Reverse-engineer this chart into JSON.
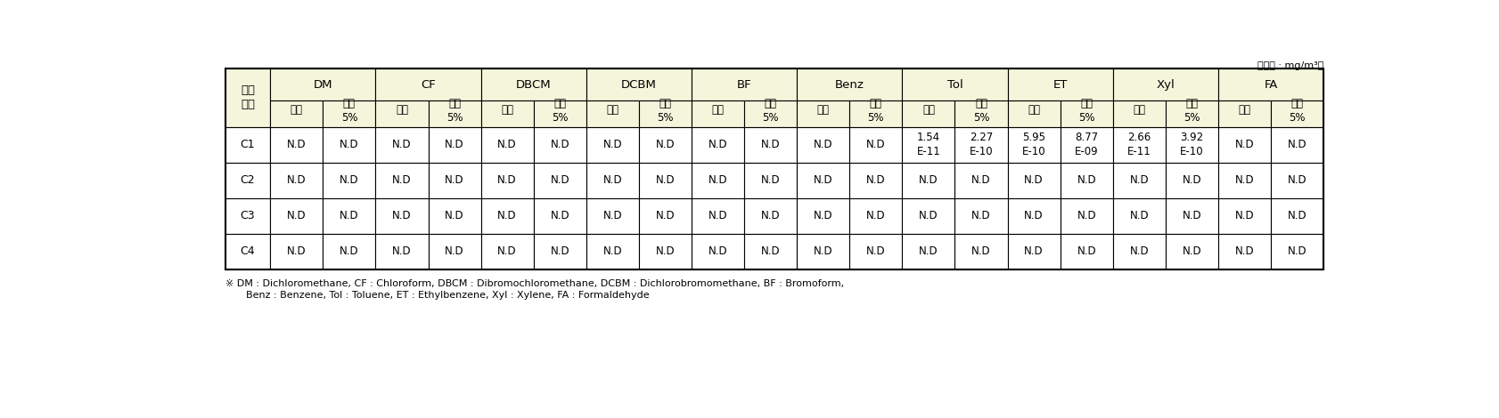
{
  "unit_text": "（단위 : mg/m³）",
  "col_groups": [
    "DM",
    "CF",
    "DBCM",
    "DCBM",
    "BF",
    "Benz",
    "Tol",
    "ET",
    "Xyl",
    "FA"
  ],
  "rows": [
    {
      "label": "C1",
      "values": [
        "N.D",
        "N.D",
        "N.D",
        "N.D",
        "N.D",
        "N.D",
        "N.D",
        "N.D",
        "N.D",
        "N.D",
        "N.D",
        "N.D",
        "1.54\nE-11",
        "2.27\nE-10",
        "5.95\nE-10",
        "8.77\nE-09",
        "2.66\nE-11",
        "3.92\nE-10",
        "N.D",
        "N.D"
      ]
    },
    {
      "label": "C2",
      "values": [
        "N.D",
        "N.D",
        "N.D",
        "N.D",
        "N.D",
        "N.D",
        "N.D",
        "N.D",
        "N.D",
        "N.D",
        "N.D",
        "N.D",
        "N.D",
        "N.D",
        "N.D",
        "N.D",
        "N.D",
        "N.D",
        "N.D",
        "N.D"
      ]
    },
    {
      "label": "C3",
      "values": [
        "N.D",
        "N.D",
        "N.D",
        "N.D",
        "N.D",
        "N.D",
        "N.D",
        "N.D",
        "N.D",
        "N.D",
        "N.D",
        "N.D",
        "N.D",
        "N.D",
        "N.D",
        "N.D",
        "N.D",
        "N.D",
        "N.D",
        "N.D"
      ]
    },
    {
      "label": "C4",
      "values": [
        "N.D",
        "N.D",
        "N.D",
        "N.D",
        "N.D",
        "N.D",
        "N.D",
        "N.D",
        "N.D",
        "N.D",
        "N.D",
        "N.D",
        "N.D",
        "N.D",
        "N.D",
        "N.D",
        "N.D",
        "N.D",
        "N.D",
        "N.D"
      ]
    }
  ],
  "footnote_line1": "※ DM : Dichloromethane, CF : Chloroform, DBCM : Dibromochloromethane, DCBM : Dichlorobromomethane, BF : Bromoform,",
  "footnote_line2": "    Benz : Benzene, Tol : Toluene, ET : Ethylbenzene, Xyl : Xylene, FA : Formaldehyde",
  "header_bg": "#f5f5dc",
  "table_bg": "#ffffff",
  "border_color": "#000000",
  "text_color": "#000000",
  "font_size": 8.5,
  "header_font_size": 9.5
}
